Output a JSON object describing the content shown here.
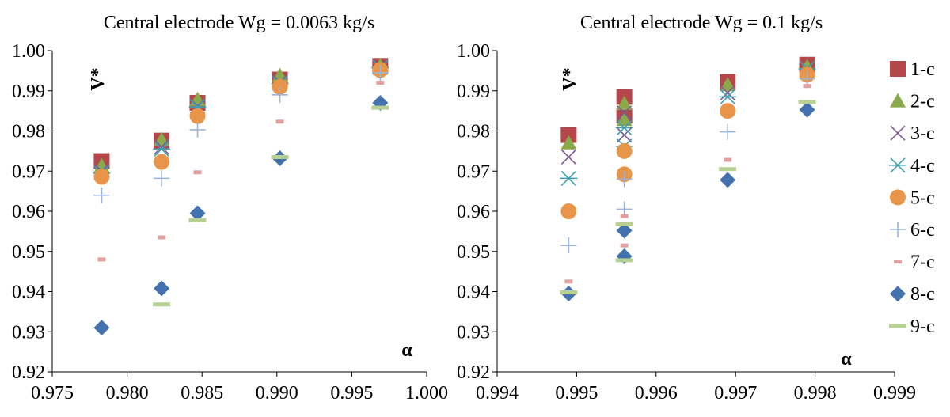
{
  "marker_styles": {
    "1-c": {
      "shape": "square",
      "color": "#B5474B"
    },
    "2-c": {
      "shape": "triangle",
      "color": "#8AA94A"
    },
    "3-c": {
      "shape": "x",
      "color": "#7A5B98"
    },
    "4-c": {
      "shape": "asterisk",
      "color": "#3E9FB0"
    },
    "5-c": {
      "shape": "circle",
      "color": "#E8954A"
    },
    "6-c": {
      "shape": "plus",
      "color": "#9BB3DA"
    },
    "7-c": {
      "shape": "short-dash",
      "color": "#E2A1A0"
    },
    "8-c": {
      "shape": "diamond",
      "color": "#4372AE"
    },
    "9-c": {
      "shape": "long-dash",
      "color": "#B7D094"
    }
  },
  "legend": [
    "1-c",
    "2-c",
    "3-c",
    "4-c",
    "5-c",
    "6-c",
    "7-c",
    "8-c",
    "9-c"
  ],
  "chart_data": [
    {
      "type": "scatter",
      "title": "Central electrode Wg = 0.0063 kg/s",
      "xlabel": "α",
      "ylabel": "V*",
      "xlim": [
        0.975,
        1.0
      ],
      "ylim": [
        0.92,
        1.0
      ],
      "xticks": [
        "0.975",
        "0.980",
        "0.985",
        "0.990",
        "0.995",
        "1.000"
      ],
      "yticks": [
        "0.92",
        "0.93",
        "0.94",
        "0.95",
        "0.96",
        "0.97",
        "0.98",
        "0.99",
        "1.00"
      ],
      "grid": false,
      "series": [
        {
          "name": "1-c",
          "x": [
            0.9783,
            0.9823,
            0.9847,
            0.9902,
            0.9969
          ],
          "y": [
            0.9725,
            0.9776,
            0.987,
            0.9928,
            0.9962
          ]
        },
        {
          "name": "2-c",
          "x": [
            0.9783,
            0.9823,
            0.9847,
            0.9902,
            0.9969
          ],
          "y": [
            0.9713,
            0.9778,
            0.9878,
            0.9938,
            0.9962
          ]
        },
        {
          "name": "3-c",
          "x": [
            0.9783,
            0.9823,
            0.9847,
            0.9902,
            0.9969
          ],
          "y": [
            0.97,
            0.976,
            0.9862,
            0.9922,
            0.996
          ]
        },
        {
          "name": "4-c",
          "x": [
            0.9783,
            0.9823,
            0.9847,
            0.9902,
            0.9969
          ],
          "y": [
            0.9695,
            0.9755,
            0.986,
            0.9918,
            0.9958
          ]
        },
        {
          "name": "5-c",
          "x": [
            0.9783,
            0.9823,
            0.9847,
            0.9902,
            0.9969
          ],
          "y": [
            0.9686,
            0.9723,
            0.9837,
            0.991,
            0.9952
          ]
        },
        {
          "name": "6-c",
          "x": [
            0.9783,
            0.9823,
            0.9847,
            0.9902,
            0.9969
          ],
          "y": [
            0.964,
            0.9682,
            0.9803,
            0.989,
            0.9945
          ]
        },
        {
          "name": "7-c",
          "x": [
            0.9783,
            0.9823,
            0.9847,
            0.9902,
            0.9969
          ],
          "y": [
            0.948,
            0.9535,
            0.9697,
            0.9823,
            0.992
          ]
        },
        {
          "name": "8-c",
          "x": [
            0.9783,
            0.9823,
            0.9847,
            0.9902,
            0.9969
          ],
          "y": [
            0.931,
            0.9408,
            0.9595,
            0.9732,
            0.987
          ]
        },
        {
          "name": "9-c",
          "x": [
            0.9823,
            0.9847,
            0.9902,
            0.9969
          ],
          "y": [
            0.9368,
            0.9578,
            0.9735,
            0.9858
          ]
        }
      ]
    },
    {
      "type": "scatter",
      "title": "Central electrode Wg = 0.1 kg/s",
      "xlabel": "α",
      "ylabel": "V*",
      "xlim": [
        0.994,
        0.999
      ],
      "ylim": [
        0.92,
        1.0
      ],
      "xticks": [
        "0.994",
        "0.995",
        "0.996",
        "0.997",
        "0.998",
        "0.999"
      ],
      "yticks": [
        "0.92",
        "0.93",
        "0.94",
        "0.95",
        "0.96",
        "0.97",
        "0.98",
        "0.99",
        "1.00"
      ],
      "grid": false,
      "series": [
        {
          "name": "1-c",
          "x": [
            0.9949,
            0.9956,
            0.9956,
            0.9969,
            0.9979
          ],
          "y": [
            0.979,
            0.9885,
            0.9838,
            0.9922,
            0.9965
          ]
        },
        {
          "name": "2-c",
          "x": [
            0.9949,
            0.9956,
            0.9956,
            0.9969,
            0.9979
          ],
          "y": [
            0.977,
            0.9868,
            0.9828,
            0.9915,
            0.996
          ]
        },
        {
          "name": "3-c",
          "x": [
            0.9949,
            0.9956,
            0.9956,
            0.9969,
            0.9979
          ],
          "y": [
            0.9735,
            0.9845,
            0.979,
            0.9895,
            0.9956
          ]
        },
        {
          "name": "4-c",
          "x": [
            0.9949,
            0.9956,
            0.9956,
            0.9969,
            0.9979
          ],
          "y": [
            0.9682,
            0.9808,
            0.9762,
            0.9885,
            0.9955
          ]
        },
        {
          "name": "5-c",
          "x": [
            0.9949,
            0.9956,
            0.9956,
            0.9969,
            0.9979
          ],
          "y": [
            0.96,
            0.975,
            0.9692,
            0.985,
            0.994
          ]
        },
        {
          "name": "6-c",
          "x": [
            0.9949,
            0.9956,
            0.9956,
            0.9969,
            0.9979
          ],
          "y": [
            0.9515,
            0.9605,
            0.968,
            0.9798,
            0.993
          ]
        },
        {
          "name": "7-c",
          "x": [
            0.9949,
            0.9956,
            0.9956,
            0.9969,
            0.9979
          ],
          "y": [
            0.9425,
            0.9515,
            0.9588,
            0.9728,
            0.9912
          ]
        },
        {
          "name": "8-c",
          "x": [
            0.9949,
            0.9956,
            0.9956,
            0.9969,
            0.9979
          ],
          "y": [
            0.9395,
            0.9488,
            0.9552,
            0.9678,
            0.9853
          ]
        },
        {
          "name": "9-c",
          "x": [
            0.9949,
            0.9956,
            0.9956,
            0.9969,
            0.9979
          ],
          "y": [
            0.9398,
            0.9478,
            0.9568,
            0.9705,
            0.9872
          ]
        }
      ]
    }
  ]
}
